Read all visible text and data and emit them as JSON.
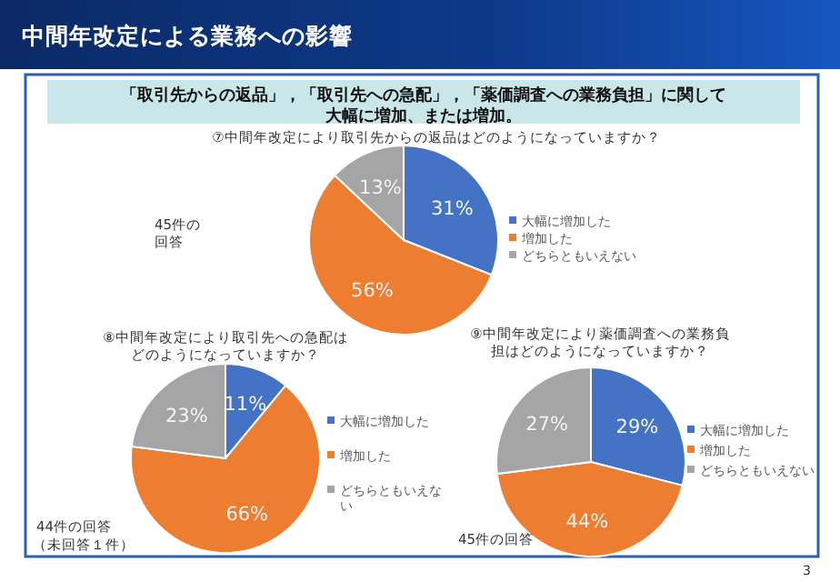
{
  "chart_data": [
    {
      "type": "pie",
      "title": "⑦中間年改定により取引先からの返品はどのようになっていますか？",
      "categories": [
        "大幅に増加した",
        "増加した",
        "どちらともいえない"
      ],
      "values": [
        31,
        56,
        13
      ],
      "value_labels": [
        "31%",
        "56%",
        "13%"
      ],
      "colors": [
        "#4472c4",
        "#ed7d31",
        "#a5a5a5"
      ],
      "legend": "right",
      "annotations": [
        "中間年改定による業務への影響",
        "「取引先からの返品」，「取引先への急配」，「薬価調査への業務負担」に関して大幅に増加、または増加。",
        "45件の回答",
        "3"
      ]
    },
    {
      "type": "pie",
      "title": "⑧中間年改定により取引先への急配はどのようになっていますか？",
      "categories": [
        "大幅に増加した",
        "増加した",
        "どちらともいえない"
      ],
      "values": [
        11,
        66,
        23
      ],
      "value_labels": [
        "11%",
        "66%",
        "23%"
      ],
      "colors": [
        "#4472c4",
        "#ed7d31",
        "#a5a5a5"
      ],
      "legend": "right",
      "annotations": [
        "44件の回答",
        "（未回答１件）"
      ]
    },
    {
      "type": "pie",
      "title": "⑨中間年改定により薬価調査への業務負担はどのようになっていますか？",
      "categories": [
        "大幅に増加した",
        "増加した",
        "どちらともいえない"
      ],
      "values": [
        29,
        44,
        27
      ],
      "value_labels": [
        "29%",
        "44%",
        "27%"
      ],
      "colors": [
        "#4472c4",
        "#ed7d31",
        "#a5a5a5"
      ],
      "legend": "right",
      "annotations": [
        "45件の回答"
      ]
    }
  ]
}
